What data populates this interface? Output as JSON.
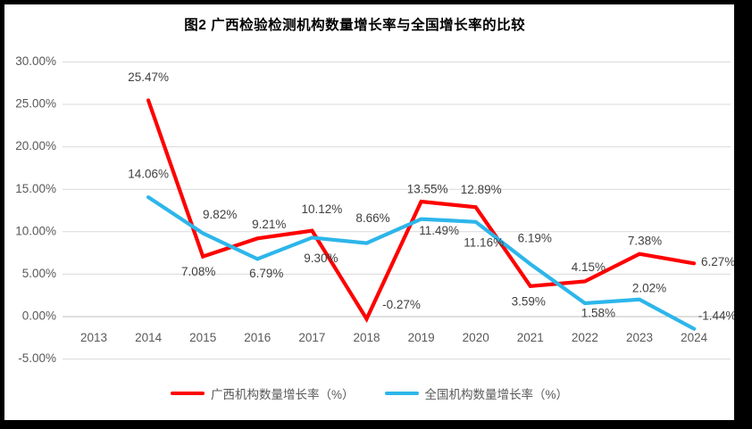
{
  "title": "图2 广西检验检测机构数量增长率与全国增长率的比较",
  "colors": {
    "guangxi_line": "#FE0000",
    "national_line": "#2DB6EA",
    "gridline": "#D9D9D9",
    "zero_axis": "#BFBFBF",
    "tick_label": "#595959",
    "data_label": "#3F3F3F"
  },
  "chart_data": {
    "type": "line",
    "title": "图2 广西检验检测机构数量增长率与全国增长率的比较",
    "categories": [
      "2013",
      "2014",
      "2015",
      "2016",
      "2017",
      "2018",
      "2019",
      "2020",
      "2021",
      "2022",
      "2023",
      "2024"
    ],
    "y_axis": {
      "min": -5,
      "max": 30,
      "step": 5,
      "format": "0.00%"
    },
    "y_tick_labels": [
      "30.00%",
      "25.00%",
      "20.00%",
      "15.00%",
      "10.00%",
      "5.00%",
      "0.00%",
      "-5.00%"
    ],
    "grid": true,
    "legend_position": "bottom",
    "series": [
      {
        "name": "广西机构数量增长率（%）",
        "color": "#FE0000",
        "values": [
          null,
          25.47,
          7.08,
          9.21,
          10.12,
          -0.27,
          13.55,
          12.89,
          3.59,
          4.15,
          7.38,
          6.27
        ],
        "labels": [
          null,
          "25.47%",
          "7.08%",
          "9.21%",
          "10.12%",
          "-0.27%",
          "13.55%",
          "12.89%",
          "3.59%",
          "4.15%",
          "7.38%",
          "6.27%"
        ],
        "label_offsets": [
          null,
          [
            0,
            -25
          ],
          [
            -5,
            18
          ],
          [
            13,
            -15
          ],
          [
            11,
            -23
          ],
          [
            39,
            -15
          ],
          [
            7,
            -13
          ],
          [
            6,
            -19
          ],
          [
            -2,
            18
          ],
          [
            4,
            -15
          ],
          [
            6,
            -14
          ],
          [
            27,
            -1
          ]
        ]
      },
      {
        "name": "全国机构数量增长率（%）",
        "color": "#2DB6EA",
        "values": [
          null,
          14.06,
          9.82,
          6.79,
          9.3,
          8.66,
          11.49,
          11.16,
          6.19,
          1.58,
          2.02,
          -1.44
        ],
        "labels": [
          null,
          "14.06%",
          "9.82%",
          "6.79%",
          "9.30%",
          "8.66%",
          "11.49%",
          "11.16%",
          "6.19%",
          "1.58%",
          "2.02%",
          "-1.44%"
        ],
        "label_offsets": [
          null,
          [
            0,
            -25
          ],
          [
            19,
            -20
          ],
          [
            10,
            17
          ],
          [
            10,
            24
          ],
          [
            7,
            -27
          ],
          [
            20,
            14
          ],
          [
            9,
            24
          ],
          [
            5,
            -28
          ],
          [
            15,
            12
          ],
          [
            11,
            -12
          ],
          [
            26,
            -14
          ]
        ]
      }
    ]
  }
}
